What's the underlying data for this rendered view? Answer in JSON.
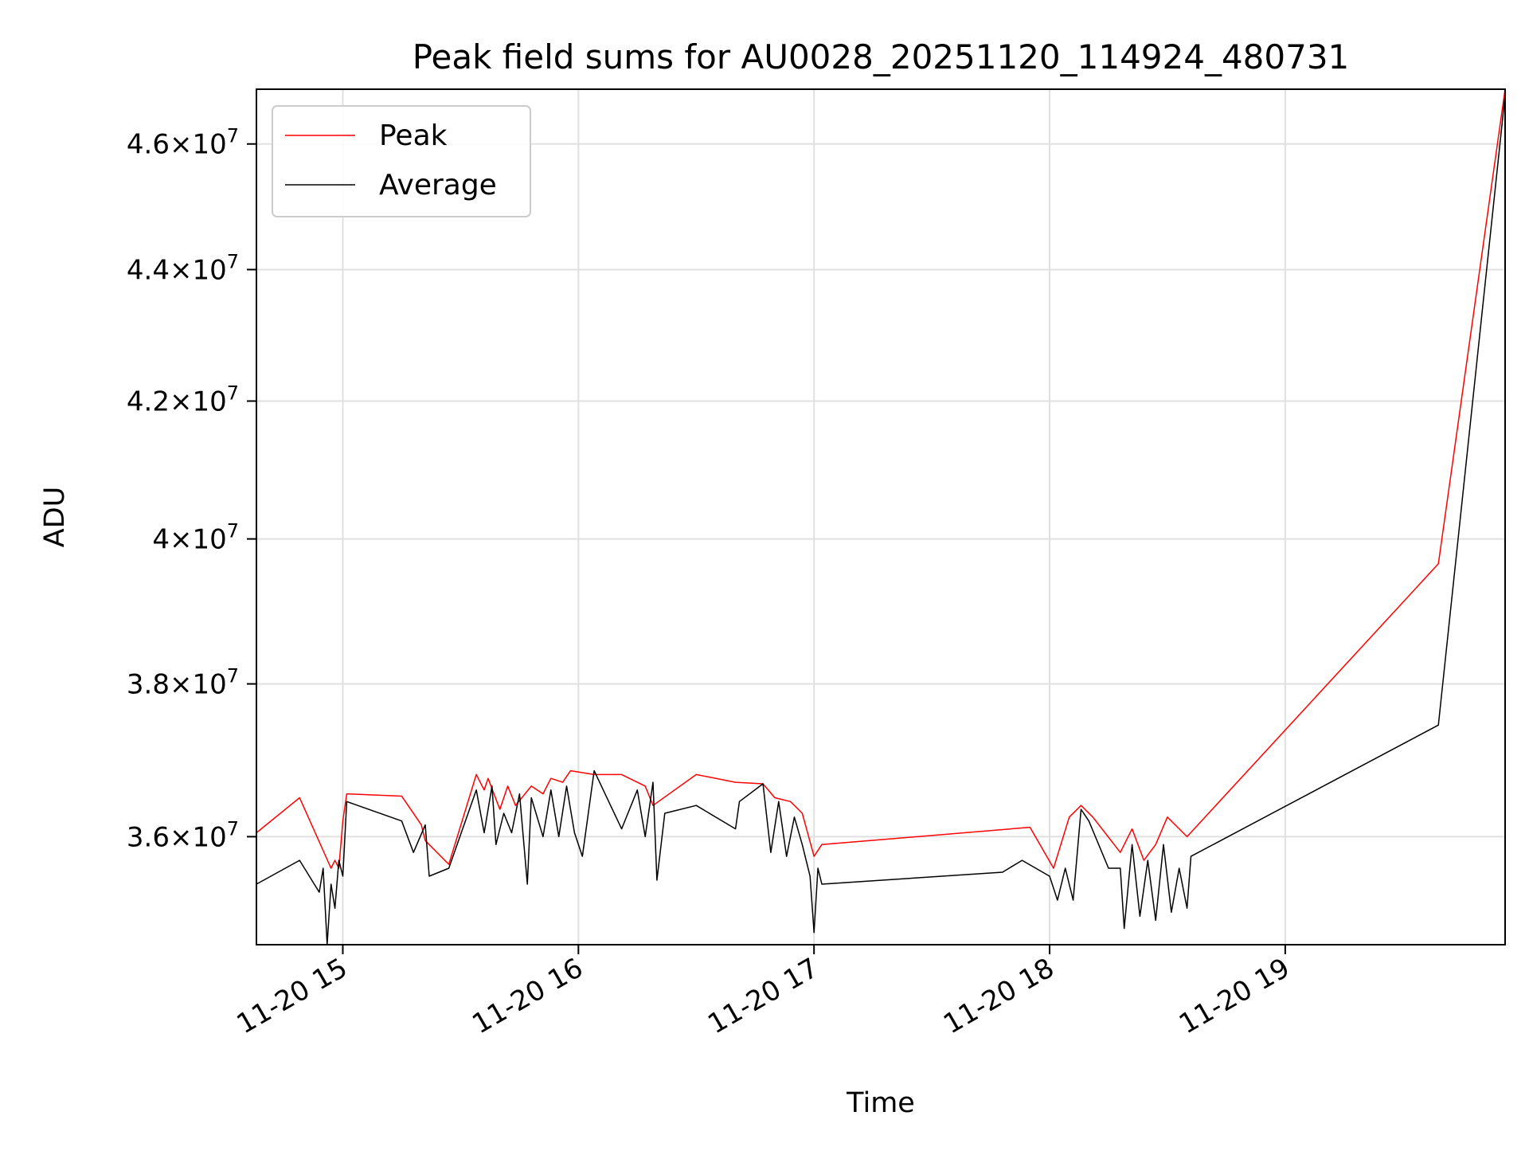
{
  "chart_data": {
    "type": "line",
    "title": "Peak field sums for AU0028_20251120_114924_480731",
    "xlabel": "Time",
    "ylabel": "ADU",
    "x_axis_kind": "time",
    "xlim": [
      "2025-11-20 14:38",
      "2025-11-20 19:56"
    ],
    "ylim": [
      34650000,
      46900000
    ],
    "y_scale": "log",
    "grid": true,
    "legend_position": "upper-left",
    "x_ticks": [
      {
        "value": "2025-11-20 15:00",
        "label": "11-20 15"
      },
      {
        "value": "2025-11-20 16:00",
        "label": "11-20 16"
      },
      {
        "value": "2025-11-20 17:00",
        "label": "11-20 17"
      },
      {
        "value": "2025-11-20 18:00",
        "label": "11-20 18"
      },
      {
        "value": "2025-11-20 19:00",
        "label": "11-20 19"
      }
    ],
    "y_ticks": [
      {
        "value": 36000000,
        "mantissa": "3.6",
        "exponent": "7"
      },
      {
        "value": 38000000,
        "mantissa": "3.8",
        "exponent": "7"
      },
      {
        "value": 40000000,
        "mantissa": "4",
        "exponent": "7"
      },
      {
        "value": 42000000,
        "mantissa": "4.2",
        "exponent": "7"
      },
      {
        "value": 44000000,
        "mantissa": "4.4",
        "exponent": "7"
      },
      {
        "value": 46000000,
        "mantissa": "4.6",
        "exponent": "7"
      }
    ],
    "series": [
      {
        "name": "Peak",
        "color": "#ff0000",
        "points": [
          [
            "2025-11-20 14:38",
            36050000
          ],
          [
            "2025-11-20 14:49",
            36500000
          ],
          [
            "2025-11-20 14:57",
            35600000
          ],
          [
            "2025-11-20 14:58",
            35700000
          ],
          [
            "2025-11-20 14:59",
            35600000
          ],
          [
            "2025-11-20 15:00",
            36200000
          ],
          [
            "2025-11-20 15:01",
            36550000
          ],
          [
            "2025-11-20 15:15",
            36520000
          ],
          [
            "2025-11-20 15:20",
            36150000
          ],
          [
            "2025-11-20 15:21",
            35950000
          ],
          [
            "2025-11-20 15:27",
            35650000
          ],
          [
            "2025-11-20 15:34",
            36800000
          ],
          [
            "2025-11-20 15:36",
            36600000
          ],
          [
            "2025-11-20 15:37",
            36750000
          ],
          [
            "2025-11-20 15:40",
            36350000
          ],
          [
            "2025-11-20 15:42",
            36650000
          ],
          [
            "2025-11-20 15:44",
            36400000
          ],
          [
            "2025-11-20 15:48",
            36650000
          ],
          [
            "2025-11-20 15:51",
            36550000
          ],
          [
            "2025-11-20 15:53",
            36750000
          ],
          [
            "2025-11-20 15:56",
            36700000
          ],
          [
            "2025-11-20 15:58",
            36850000
          ],
          [
            "2025-11-20 16:04",
            36800000
          ],
          [
            "2025-11-20 16:11",
            36800000
          ],
          [
            "2025-11-20 16:15",
            36700000
          ],
          [
            "2025-11-20 16:17",
            36650000
          ],
          [
            "2025-11-20 16:19",
            36400000
          ],
          [
            "2025-11-20 16:30",
            36800000
          ],
          [
            "2025-11-20 16:40",
            36700000
          ],
          [
            "2025-11-20 16:47",
            36680000
          ],
          [
            "2025-11-20 16:50",
            36500000
          ],
          [
            "2025-11-20 16:54",
            36450000
          ],
          [
            "2025-11-20 16:57",
            36300000
          ],
          [
            "2025-11-20 17:00",
            35750000
          ],
          [
            "2025-11-20 17:02",
            35900000
          ],
          [
            "2025-11-20 17:55",
            36120000
          ],
          [
            "2025-11-20 18:01",
            35600000
          ],
          [
            "2025-11-20 18:05",
            36250000
          ],
          [
            "2025-11-20 18:08",
            36400000
          ],
          [
            "2025-11-20 18:11",
            36250000
          ],
          [
            "2025-11-20 18:18",
            35800000
          ],
          [
            "2025-11-20 18:21",
            36100000
          ],
          [
            "2025-11-20 18:24",
            35700000
          ],
          [
            "2025-11-20 18:27",
            35900000
          ],
          [
            "2025-11-20 18:30",
            36250000
          ],
          [
            "2025-11-20 18:35",
            36000000
          ],
          [
            "2025-11-20 19:39",
            39650000
          ],
          [
            "2025-11-20 19:56",
            46900000
          ]
        ]
      },
      {
        "name": "Average",
        "color": "#000000",
        "points": [
          [
            "2025-11-20 14:38",
            35400000
          ],
          [
            "2025-11-20 14:49",
            35700000
          ],
          [
            "2025-11-20 14:54",
            35300000
          ],
          [
            "2025-11-20 14:55",
            35600000
          ],
          [
            "2025-11-20 14:56",
            34650000
          ],
          [
            "2025-11-20 14:57",
            35400000
          ],
          [
            "2025-11-20 14:58",
            35100000
          ],
          [
            "2025-11-20 14:59",
            35700000
          ],
          [
            "2025-11-20 15:00",
            35500000
          ],
          [
            "2025-11-20 15:01",
            36450000
          ],
          [
            "2025-11-20 15:15",
            36200000
          ],
          [
            "2025-11-20 15:18",
            35800000
          ],
          [
            "2025-11-20 15:21",
            36150000
          ],
          [
            "2025-11-20 15:22",
            35500000
          ],
          [
            "2025-11-20 15:27",
            35600000
          ],
          [
            "2025-11-20 15:34",
            36600000
          ],
          [
            "2025-11-20 15:36",
            36050000
          ],
          [
            "2025-11-20 15:38",
            36650000
          ],
          [
            "2025-11-20 15:39",
            35900000
          ],
          [
            "2025-11-20 15:41",
            36300000
          ],
          [
            "2025-11-20 15:43",
            36050000
          ],
          [
            "2025-11-20 15:45",
            36550000
          ],
          [
            "2025-11-20 15:47",
            35400000
          ],
          [
            "2025-11-20 15:48",
            36500000
          ],
          [
            "2025-11-20 15:51",
            36000000
          ],
          [
            "2025-11-20 15:53",
            36600000
          ],
          [
            "2025-11-20 15:55",
            36000000
          ],
          [
            "2025-11-20 15:57",
            36650000
          ],
          [
            "2025-11-20 15:59",
            36050000
          ],
          [
            "2025-11-20 16:01",
            35750000
          ],
          [
            "2025-11-20 16:04",
            36850000
          ],
          [
            "2025-11-20 16:11",
            36100000
          ],
          [
            "2025-11-20 16:15",
            36600000
          ],
          [
            "2025-11-20 16:17",
            36000000
          ],
          [
            "2025-11-20 16:19",
            36700000
          ],
          [
            "2025-11-20 16:20",
            35450000
          ],
          [
            "2025-11-20 16:22",
            36300000
          ],
          [
            "2025-11-20 16:30",
            36400000
          ],
          [
            "2025-11-20 16:40",
            36100000
          ],
          [
            "2025-11-20 16:41",
            36450000
          ],
          [
            "2025-11-20 16:47",
            36680000
          ],
          [
            "2025-11-20 16:49",
            35800000
          ],
          [
            "2025-11-20 16:51",
            36450000
          ],
          [
            "2025-11-20 16:53",
            35750000
          ],
          [
            "2025-11-20 16:55",
            36250000
          ],
          [
            "2025-11-20 16:57",
            35900000
          ],
          [
            "2025-11-20 16:59",
            35500000
          ],
          [
            "2025-11-20 17:00",
            34800000
          ],
          [
            "2025-11-20 17:01",
            35600000
          ],
          [
            "2025-11-20 17:02",
            35400000
          ],
          [
            "2025-11-20 17:48",
            35550000
          ],
          [
            "2025-11-20 17:53",
            35700000
          ],
          [
            "2025-11-20 18:00",
            35500000
          ],
          [
            "2025-11-20 18:02",
            35200000
          ],
          [
            "2025-11-20 18:04",
            35600000
          ],
          [
            "2025-11-20 18:06",
            35200000
          ],
          [
            "2025-11-20 18:08",
            36350000
          ],
          [
            "2025-11-20 18:10",
            36200000
          ],
          [
            "2025-11-20 18:15",
            35600000
          ],
          [
            "2025-11-20 18:18",
            35600000
          ],
          [
            "2025-11-20 18:19",
            34850000
          ],
          [
            "2025-11-20 18:21",
            35900000
          ],
          [
            "2025-11-20 18:23",
            35000000
          ],
          [
            "2025-11-20 18:25",
            35700000
          ],
          [
            "2025-11-20 18:27",
            34950000
          ],
          [
            "2025-11-20 18:29",
            35900000
          ],
          [
            "2025-11-20 18:31",
            35050000
          ],
          [
            "2025-11-20 18:33",
            35600000
          ],
          [
            "2025-11-20 18:35",
            35100000
          ],
          [
            "2025-11-20 18:36",
            35750000
          ],
          [
            "2025-11-20 19:39",
            37450000
          ],
          [
            "2025-11-20 19:56",
            46800000
          ]
        ]
      }
    ]
  }
}
